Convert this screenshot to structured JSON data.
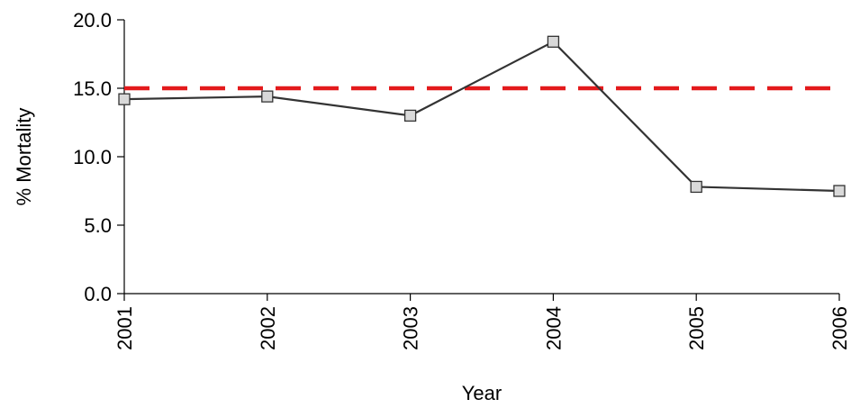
{
  "chart_data": {
    "type": "line",
    "xlabel": "Year",
    "ylabel": "% Mortality",
    "x": [
      "2001",
      "2002",
      "2003",
      "2004",
      "2005",
      "2006"
    ],
    "ylim": [
      0,
      20
    ],
    "yticks": [
      "0.0",
      "5.0",
      "10.0",
      "15.0",
      "20.0"
    ],
    "series": [
      {
        "values": [
          14.2,
          14.4,
          13.0,
          18.4,
          7.8,
          7.5
        ],
        "marker": "square",
        "line_color": "#333333",
        "marker_fill": "#d9d9d9"
      }
    ],
    "reference_line": {
      "value": 15.0,
      "style": "dashed",
      "color": "#e31a1c"
    },
    "grid": false,
    "legend": "none"
  }
}
